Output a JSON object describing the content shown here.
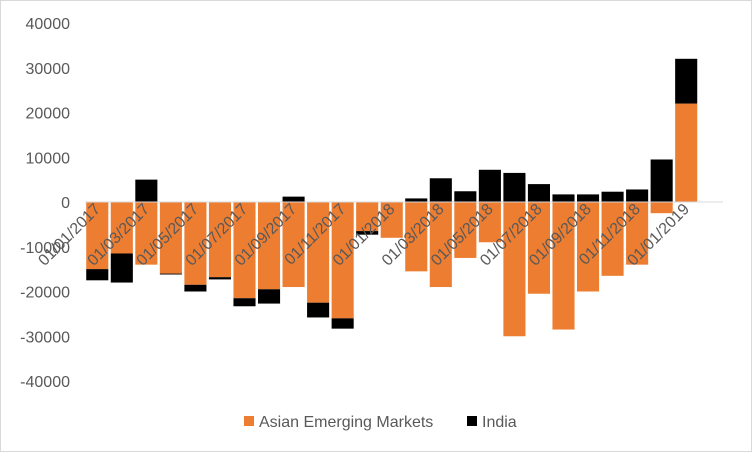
{
  "chart_data": {
    "type": "bar",
    "stacked": true,
    "title": "",
    "xlabel": "",
    "ylabel": "",
    "ylim": [
      -40000,
      40000
    ],
    "ytick_step": 10000,
    "y_ticks": [
      "40000",
      "30000",
      "20000",
      "10000",
      "0",
      "-10000",
      "-20000",
      "-30000",
      "-40000"
    ],
    "grid": false,
    "legend_position": "bottom",
    "categories": [
      "01/01/2017",
      "01/02/2017",
      "01/03/2017",
      "01/04/2017",
      "01/05/2017",
      "01/06/2017",
      "01/07/2017",
      "01/08/2017",
      "01/09/2017",
      "01/10/2017",
      "01/11/2017",
      "01/12/2017",
      "01/01/2018",
      "01/02/2018",
      "01/03/2018",
      "01/04/2018",
      "01/05/2018",
      "01/06/2018",
      "01/07/2018",
      "01/08/2018",
      "01/09/2018",
      "01/10/2018",
      "01/11/2018",
      "01/12/2018",
      "01/01/2019",
      "01/02/2019"
    ],
    "x_tick_labels": [
      "01/01/2017",
      "01/03/2017",
      "01/05/2017",
      "01/07/2017",
      "01/09/2017",
      "01/11/2017",
      "01/01/2018",
      "01/03/2018",
      "01/05/2018",
      "01/07/2018",
      "01/09/2018",
      "01/11/2018",
      "01/01/2019"
    ],
    "series": [
      {
        "name": "Asian Emerging Markets",
        "color": "#ED7D31",
        "values": [
          -15000,
          -11500,
          -14000,
          -16000,
          -18500,
          -16800,
          -21500,
          -19500,
          -19000,
          -22500,
          -26000,
          -6500,
          -8000,
          -15500,
          -19000,
          -12500,
          -9000,
          -30000,
          -20500,
          -28500,
          -20000,
          -16500,
          -14000,
          -2500,
          22000,
          0
        ]
      },
      {
        "name": "India",
        "color": "#000000",
        "values": [
          -2500,
          -6500,
          5000,
          -200,
          -1500,
          -500,
          -1800,
          -3200,
          1200,
          -3300,
          -2300,
          -800,
          0,
          800,
          5300,
          2400,
          7200,
          6500,
          4000,
          1700,
          1700,
          2300,
          2800,
          9500,
          10000,
          0
        ]
      }
    ]
  }
}
